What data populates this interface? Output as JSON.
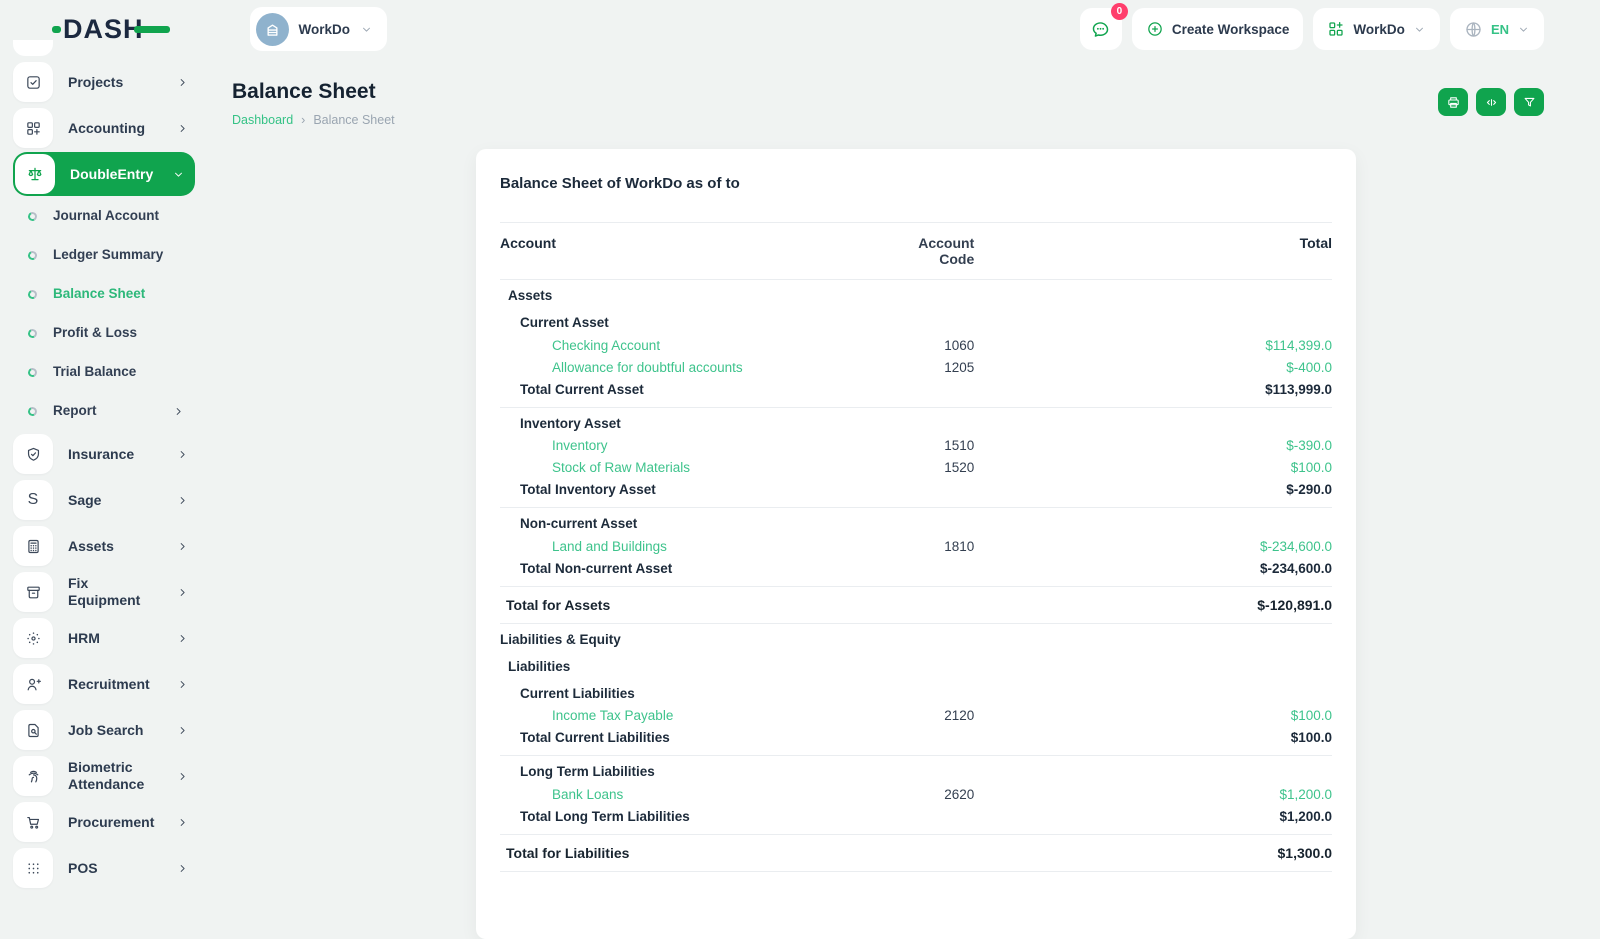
{
  "brand": {
    "name": "DASH"
  },
  "colors": {
    "primary": "#10a44e",
    "link_green": "#3ec38c",
    "badge_red": "#ff3e6c",
    "avatar_blue": "#8fb2cd"
  },
  "workspace_switcher": {
    "label": "WorkDo",
    "avatar_icon": "building-icon"
  },
  "header": {
    "chat": {
      "badge": "0",
      "icon": "chat-icon"
    },
    "create_workspace": {
      "label": "Create Workspace",
      "icon": "plus-circle-icon"
    },
    "workspace_menu": {
      "label": "WorkDo",
      "icon": "workspace-grid-icon"
    },
    "language": {
      "label": "EN",
      "icon": "globe-icon"
    }
  },
  "page": {
    "title": "Balance Sheet",
    "breadcrumb": {
      "items": [
        "Dashboard",
        "Balance Sheet"
      ],
      "separator": "›"
    }
  },
  "toolbar": {
    "buttons": [
      {
        "icon": "printer-icon"
      },
      {
        "icon": "columns-icon"
      },
      {
        "icon": "filter-icon"
      }
    ]
  },
  "sidebar": {
    "items": [
      {
        "type": "item",
        "label": "Projects",
        "icon": "checkbox-icon",
        "chevron": "right"
      },
      {
        "type": "item",
        "label": "Accounting",
        "icon": "grid-plus-icon",
        "chevron": "right"
      },
      {
        "type": "item",
        "label": "DoubleEntry",
        "icon": "scales-icon",
        "chevron": "down",
        "active": true
      },
      {
        "type": "sub",
        "label": "Journal Account",
        "icon": "donut-icon"
      },
      {
        "type": "sub",
        "label": "Ledger Summary",
        "icon": "donut-icon"
      },
      {
        "type": "sub",
        "label": "Balance Sheet",
        "icon": "donut-icon",
        "active": true
      },
      {
        "type": "sub",
        "label": "Profit & Loss",
        "icon": "donut-icon"
      },
      {
        "type": "sub",
        "label": "Trial Balance",
        "icon": "donut-icon"
      },
      {
        "type": "sub",
        "label": "Report",
        "icon": "donut-icon",
        "chevron": "right"
      },
      {
        "type": "item",
        "label": "Insurance",
        "icon": "shield-check-icon",
        "chevron": "right"
      },
      {
        "type": "item",
        "label": "Sage",
        "icon": "letter-s-icon",
        "chevron": "right"
      },
      {
        "type": "item",
        "label": "Assets",
        "icon": "calculator-icon",
        "chevron": "right"
      },
      {
        "type": "item",
        "label": "Fix Equipment",
        "icon": "archive-icon",
        "chevron": "right"
      },
      {
        "type": "item",
        "label": "HRM",
        "icon": "hrm-dots-icon",
        "chevron": "right"
      },
      {
        "type": "item",
        "label": "Recruitment",
        "icon": "person-plus-icon",
        "chevron": "right"
      },
      {
        "type": "item",
        "label": "Job Search",
        "icon": "doc-search-icon",
        "chevron": "right"
      },
      {
        "type": "item",
        "label": "Biometric Attendance",
        "icon": "fingerprint-icon",
        "chevron": "right"
      },
      {
        "type": "item",
        "label": "Procurement",
        "icon": "cart-icon",
        "chevron": "right"
      },
      {
        "type": "item",
        "label": "POS",
        "icon": "dots-grid-icon",
        "chevron": "right"
      }
    ]
  },
  "card": {
    "title": "Balance Sheet of WorkDo as of to",
    "table": {
      "columns": [
        "Account",
        "Account Code",
        "Total"
      ],
      "rows": [
        {
          "type": "section",
          "level": 1,
          "label": "Assets"
        },
        {
          "type": "section",
          "level": 2,
          "label": "Current Asset"
        },
        {
          "type": "account",
          "level": 3,
          "label": "Checking Account",
          "code": "1060",
          "total": "$114,399.0"
        },
        {
          "type": "account",
          "level": 3,
          "label": "Allowance for doubtful accounts",
          "code": "1205",
          "total": "$-400.0"
        },
        {
          "type": "subtotal",
          "level": 2,
          "label": "Total Current Asset",
          "total": "$113,999.0"
        },
        {
          "type": "section",
          "level": 2,
          "label": "Inventory Asset"
        },
        {
          "type": "account",
          "level": 3,
          "label": "Inventory",
          "code": "1510",
          "total": "$-390.0"
        },
        {
          "type": "account",
          "level": 3,
          "label": "Stock of Raw Materials",
          "code": "1520",
          "total": "$100.0"
        },
        {
          "type": "subtotal",
          "level": 2,
          "label": "Total Inventory Asset",
          "total": "$-290.0"
        },
        {
          "type": "section",
          "level": 2,
          "label": "Non-current Asset"
        },
        {
          "type": "account",
          "level": 3,
          "label": "Land and Buildings",
          "code": "1810",
          "total": "$-234,600.0"
        },
        {
          "type": "subtotal",
          "level": 2,
          "label": "Total Non-current Asset",
          "total": "$-234,600.0"
        },
        {
          "type": "grandtotal",
          "level": 0,
          "label": "Total for Assets",
          "total": "$-120,891.0"
        },
        {
          "type": "section",
          "level": 0,
          "label": "Liabilities & Equity"
        },
        {
          "type": "section",
          "level": 1,
          "label": "Liabilities"
        },
        {
          "type": "section",
          "level": 2,
          "label": "Current Liabilities"
        },
        {
          "type": "account",
          "level": 3,
          "label": "Income Tax Payable",
          "code": "2120",
          "total": "$100.0"
        },
        {
          "type": "subtotal",
          "level": 2,
          "label": "Total Current Liabilities",
          "total": "$100.0"
        },
        {
          "type": "section",
          "level": 2,
          "label": "Long Term Liabilities"
        },
        {
          "type": "account",
          "level": 3,
          "label": "Bank Loans",
          "code": "2620",
          "total": "$1,200.0"
        },
        {
          "type": "subtotal",
          "level": 2,
          "label": "Total Long Term Liabilities",
          "total": "$1,200.0"
        },
        {
          "type": "grandtotal",
          "level": 0,
          "label": "Total for Liabilities",
          "total": "$1,300.0"
        }
      ]
    }
  }
}
